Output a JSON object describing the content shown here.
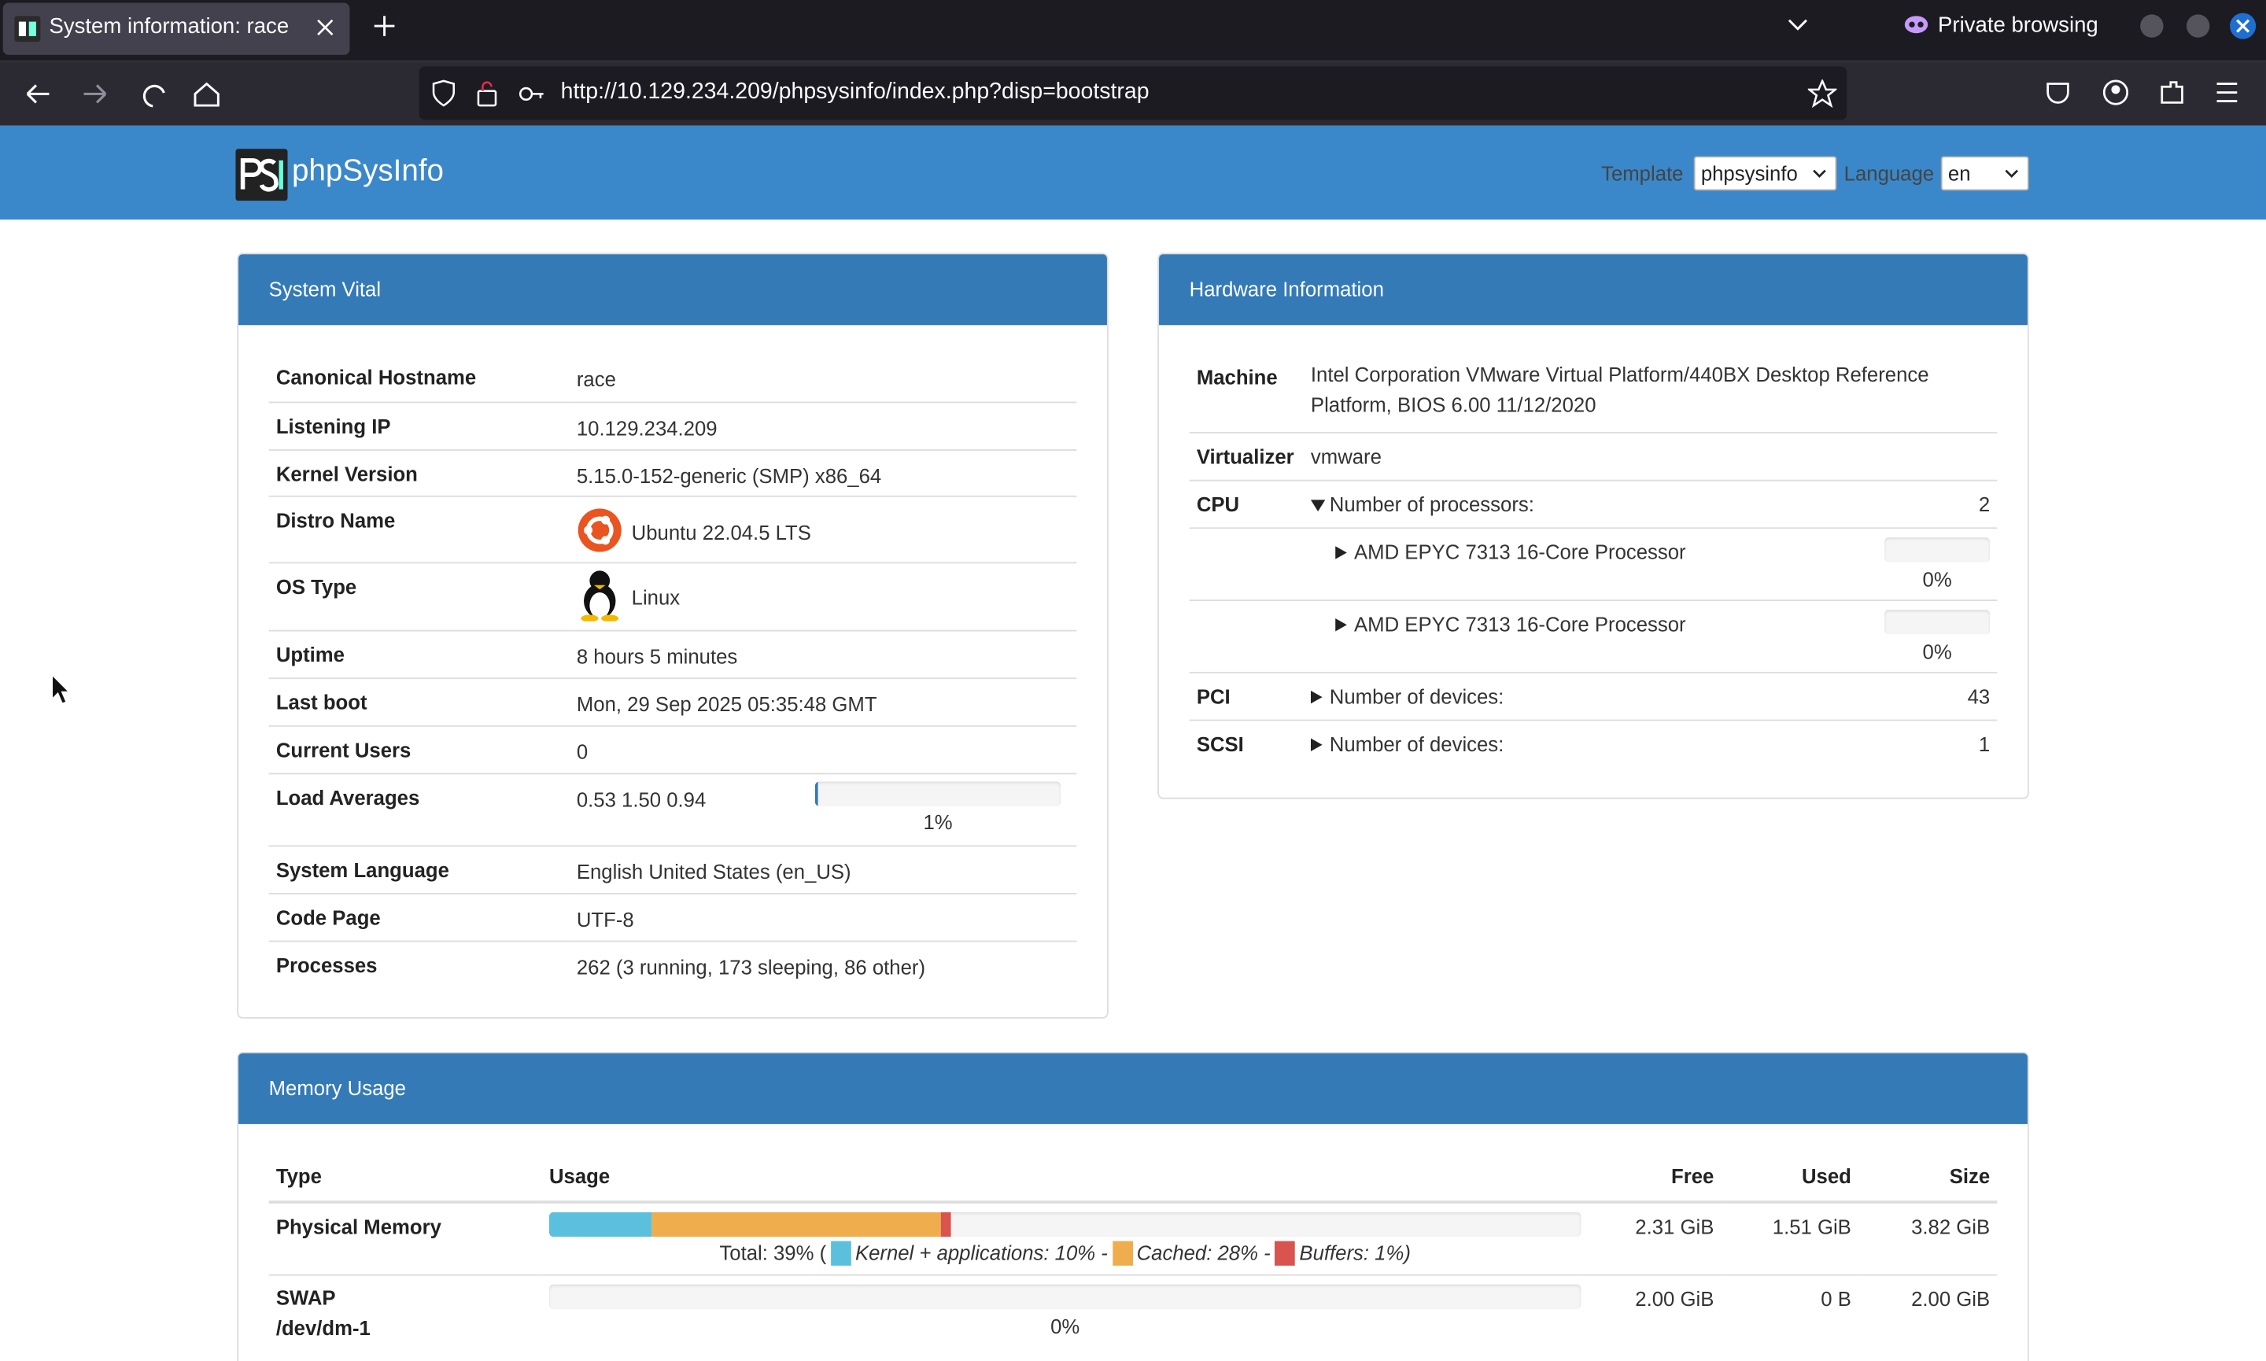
{
  "browser": {
    "tab_title": "System information: race",
    "url": "http://10.129.234.209/phpsysinfo/index.php?disp=bootstrap",
    "private_label": "Private browsing"
  },
  "header": {
    "brand": "phpSysInfo",
    "template_label": "Template",
    "template_value": "phpsysinfo",
    "language_label": "Language",
    "language_value": "en"
  },
  "system_vital": {
    "title": "System Vital",
    "rows": [
      [
        "Canonical Hostname",
        "race"
      ],
      [
        "Listening IP",
        "10.129.234.209"
      ],
      [
        "Kernel Version",
        "5.15.0-152-generic (SMP) x86_64"
      ],
      [
        "Distro Name",
        "Ubuntu 22.04.5 LTS"
      ],
      [
        "OS Type",
        "Linux"
      ],
      [
        "Uptime",
        "8 hours 5 minutes"
      ],
      [
        "Last boot",
        "Mon, 29 Sep 2025 05:35:48 GMT"
      ],
      [
        "Current Users",
        "0"
      ],
      [
        "Load Averages",
        "0.53 1.50 0.94"
      ],
      [
        "System Language",
        "English United States (en_US)"
      ],
      [
        "Code Page",
        "UTF-8"
      ],
      [
        "Processes",
        "262 (3 running, 173 sleeping, 86 other)"
      ]
    ],
    "load_bar": {
      "value": 1,
      "label": "1%"
    }
  },
  "hardware": {
    "title": "Hardware Information",
    "machine": [
      "Machine",
      "Intel Corporation VMware Virtual Platform/440BX Desktop Reference Platform, BIOS 6.00 11/12/2020"
    ],
    "virtualizer": [
      "Virtualizer",
      "vmware"
    ],
    "cpu": {
      "label": "CPU",
      "summary": "Number of processors:",
      "count": 2,
      "processors": [
        {
          "name": "AMD EPYC 7313 16-Core Processor",
          "load": {
            "value": 0,
            "label": "0%"
          }
        },
        {
          "name": "AMD EPYC 7313 16-Core Processor",
          "load": {
            "value": 0,
            "label": "0%"
          }
        }
      ]
    },
    "pci": {
      "label": "PCI",
      "summary": "Number of devices:",
      "count": 43
    },
    "scsi": {
      "label": "SCSI",
      "summary": "Number of devices:",
      "count": 1
    }
  },
  "memory": {
    "title": "Memory Usage",
    "columns": [
      "Type",
      "Usage",
      "Free",
      "Used",
      "Size"
    ],
    "physical": {
      "type": "Physical Memory",
      "total": {
        "value": 39,
        "label": "Total: 39% ("
      },
      "segments": [
        {
          "label": "Kernel + applications: 10% -",
          "value": 10,
          "color": "#5bc0de"
        },
        {
          "label": "Cached: 28% -",
          "value": 28,
          "color": "#f0ad4e"
        },
        {
          "label": "Buffers: 1%)",
          "value": 1,
          "color": "#d9534f"
        }
      ],
      "free": "2.31 GiB",
      "used": "1.51 GiB",
      "size": "3.82 GiB"
    },
    "swap": {
      "type": "SWAP",
      "device": "/dev/dm-1",
      "usage": {
        "value": 0,
        "label": "0%"
      },
      "free": "2.00 GiB",
      "used": "0 B",
      "size": "2.00 GiB"
    }
  }
}
